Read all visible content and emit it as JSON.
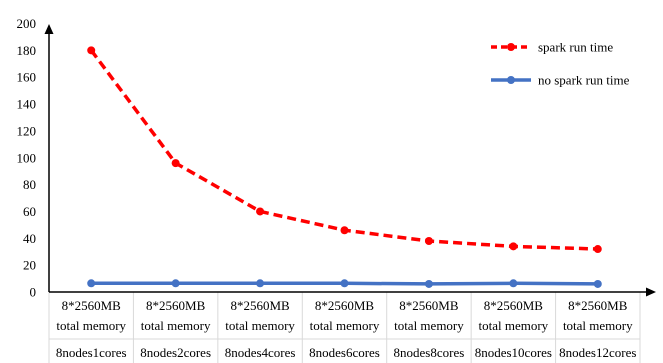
{
  "chart_data": {
    "type": "line",
    "title": "",
    "xlabel": "",
    "ylabel": "",
    "ylim": [
      0,
      200
    ],
    "yticks": [
      0,
      20,
      40,
      60,
      80,
      100,
      120,
      140,
      160,
      180,
      200
    ],
    "grid": false,
    "legend_position": "top-right",
    "categories": [
      [
        "8*2560MB",
        "total memory",
        "8nodes1cores"
      ],
      [
        "8*2560MB",
        "total memory",
        "8nodes2cores"
      ],
      [
        "8*2560MB",
        "total memory",
        "8nodes4cores"
      ],
      [
        "8*2560MB",
        "total memory",
        "8nodes6cores"
      ],
      [
        "8*2560MB",
        "total memory",
        "8nodes8cores"
      ],
      [
        "8*2560MB",
        "total memory",
        "8nodes10cores"
      ],
      [
        "8*2560MB",
        "total memory",
        "8nodes12cores"
      ]
    ],
    "series": [
      {
        "name": "spark run time",
        "color": "#ff0000",
        "style": "dashed",
        "values": [
          180,
          96,
          60,
          46,
          38,
          34,
          32
        ]
      },
      {
        "name": "no spark run time",
        "color": "#4472c4",
        "style": "solid",
        "values": [
          6.5,
          6.5,
          6.5,
          6.5,
          6,
          6.5,
          6
        ]
      }
    ]
  }
}
